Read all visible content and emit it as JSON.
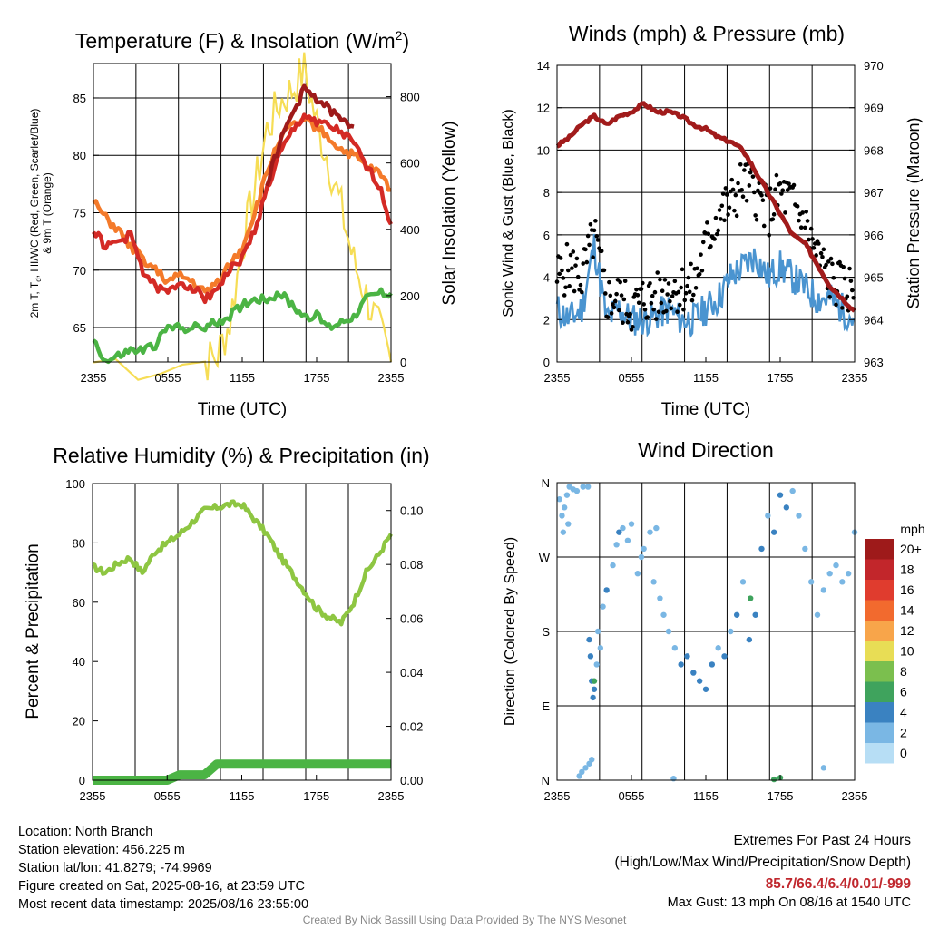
{
  "info": {
    "location": "Location: North Branch",
    "elevation": "Station elevation: 456.225 m",
    "latlon": "Station lat/lon: 41.8279; -74.9969",
    "created": "Figure created on Sat, 2025-08-16, at 23:59 UTC",
    "recent": "Most recent data timestamp: 2025/08/16 23:55:00"
  },
  "extremes": {
    "title": "Extremes For Past 24 Hours",
    "legend": "(High/Low/Max Wind/Precipitation/Snow Depth)",
    "values": "85.7/66.4/6.4/0.01/-999",
    "max_gust": "Max Gust: 13 mph On 08/16 at 1540 UTC"
  },
  "credit": "Created By Nick Bassill Using Data Provided By The NYS Mesonet",
  "colors": {
    "temp_red": "#d42a25",
    "hiwc_scarlet": "#9e1a1a",
    "temp9m_orange": "#f47a2a",
    "dewpoint_green": "#4bb444",
    "solar_yellow": "#f6dd55",
    "rh_green": "#8ec642",
    "precip_green": "#4bb444",
    "wind_blue": "#4a94d0",
    "gust_black": "#000000",
    "pressure_maroon": "#a11b1b"
  },
  "chart_data": [
    {
      "id": "temp",
      "type": "line",
      "title_main": "Temperature (F) & Insolation (W/m",
      "title_sup": "2",
      "title_end": ")",
      "xlabel": "Time (UTC)",
      "ylabel_line1": "2m T, T",
      "ylabel_sub": "d",
      "ylabel_line1_end": ", HI/WC (Red, Green, Scarlet/Blue)",
      "ylabel_line2": "& 9m T (Orange)",
      "y2label": "Solar Insolation (Yellow)",
      "xticks": [
        "2355",
        "0555",
        "1155",
        "1755",
        "2355"
      ],
      "ylim": [
        62,
        88
      ],
      "yticks": [
        "65",
        "70",
        "75",
        "80",
        "85"
      ],
      "y2lim": [
        0,
        900
      ],
      "y2ticks": [
        "0",
        "200",
        "400",
        "600",
        "800"
      ],
      "series": [
        {
          "key": "temp",
          "x": [
            0,
            1,
            2,
            3,
            4,
            5,
            6,
            7,
            8,
            9,
            10,
            11,
            12,
            13,
            14,
            15,
            16,
            17,
            18,
            19,
            20,
            21,
            22,
            23,
            24
          ],
          "values": [
            73.5,
            72.0,
            72.5,
            73.0,
            70.0,
            68.5,
            68.0,
            69.0,
            68.5,
            67.5,
            68.5,
            70.0,
            71.0,
            73.5,
            77.0,
            80.0,
            82.0,
            83.5,
            83.0,
            82.5,
            82.0,
            81.0,
            79.0,
            77.5,
            74.0
          ]
        },
        {
          "key": "temp9m",
          "x": [
            0,
            1,
            2,
            3,
            4,
            5,
            6,
            7,
            8,
            9,
            10,
            11,
            12,
            13,
            14,
            15,
            16,
            17,
            18,
            19,
            20,
            21,
            22,
            23,
            24
          ],
          "values": [
            76.0,
            74.5,
            73.5,
            72.0,
            71.0,
            70.0,
            69.0,
            69.5,
            69.0,
            68.0,
            69.0,
            70.5,
            72.0,
            75.0,
            78.5,
            81.5,
            82.5,
            83.0,
            82.5,
            81.5,
            80.5,
            80.0,
            79.0,
            78.5,
            77.0
          ]
        },
        {
          "key": "hiwc",
          "x": [
            14,
            15,
            16,
            17,
            18,
            19,
            20,
            21
          ],
          "values": [
            77.5,
            81.0,
            83.5,
            85.7,
            85.0,
            84.0,
            83.0,
            82.5
          ]
        },
        {
          "key": "dewpoint",
          "x": [
            0,
            1,
            2,
            3,
            4,
            5,
            6,
            7,
            8,
            9,
            10,
            11,
            12,
            13,
            14,
            15,
            16,
            17,
            18,
            19,
            20,
            21,
            22,
            23,
            24
          ],
          "values": [
            64.0,
            62.0,
            62.5,
            63.0,
            63.0,
            63.5,
            65.0,
            65.0,
            65.0,
            65.0,
            65.5,
            66.0,
            67.0,
            67.5,
            67.5,
            68.0,
            67.0,
            66.0,
            66.0,
            65.0,
            65.5,
            66.0,
            67.5,
            68.0,
            68.0
          ]
        },
        {
          "key": "solar",
          "x": [
            0,
            9,
            10,
            11,
            12,
            13,
            14,
            15,
            16,
            17,
            18,
            19,
            20,
            21,
            22,
            23,
            24
          ],
          "values": [
            0,
            0,
            20,
            120,
            350,
            520,
            700,
            780,
            820,
            880,
            720,
            600,
            460,
            300,
            200,
            100,
            0
          ]
        }
      ]
    },
    {
      "id": "winds",
      "type": "line",
      "title": "Winds (mph) & Pressure (mb)",
      "xlabel": "Time (UTC)",
      "ylabel": "Sonic Wind & Gust (Blue, Black)",
      "y2label": "Station Pressure (Maroon)",
      "xticks": [
        "2355",
        "0555",
        "1155",
        "1755",
        "2355"
      ],
      "ylim": [
        0,
        14
      ],
      "yticks": [
        "0",
        "2",
        "4",
        "6",
        "8",
        "10",
        "12",
        "14"
      ],
      "y2lim": [
        963,
        970
      ],
      "y2ticks": [
        "963",
        "964",
        "965",
        "966",
        "967",
        "968",
        "969",
        "970"
      ],
      "series": [
        {
          "key": "wind",
          "x": [
            0,
            1,
            2,
            3,
            4,
            5,
            6,
            7,
            8,
            9,
            10,
            11,
            12,
            13,
            14,
            15,
            16,
            17,
            18,
            19,
            20,
            21,
            22,
            23,
            24
          ],
          "values": [
            2.5,
            2.0,
            2.5,
            5.5,
            2.0,
            2.5,
            2.0,
            2.0,
            2.2,
            2.5,
            2.0,
            2.0,
            2.5,
            3.0,
            4.0,
            4.5,
            5.0,
            4.0,
            4.5,
            4.0,
            3.5,
            3.0,
            3.0,
            2.5,
            2.0
          ]
        },
        {
          "key": "gust",
          "x": [
            0,
            1,
            2,
            3,
            4,
            5,
            6,
            7,
            8,
            9,
            10,
            11,
            12,
            13,
            14,
            15,
            16,
            17,
            18,
            19,
            20,
            21,
            22,
            23,
            24
          ],
          "values": [
            4.0,
            4.5,
            4.0,
            6.0,
            3.0,
            3.0,
            2.5,
            3.0,
            3.0,
            3.5,
            3.5,
            3.5,
            5.5,
            7.0,
            7.5,
            8.5,
            8.0,
            7.0,
            8.0,
            7.5,
            6.5,
            5.0,
            4.0,
            3.5,
            3.5
          ]
        },
        {
          "key": "pressure",
          "x": [
            0,
            1,
            2,
            3,
            4,
            5,
            6,
            7,
            8,
            9,
            10,
            11,
            12,
            13,
            14,
            15,
            16,
            17,
            18,
            19,
            20,
            21,
            22,
            23,
            24
          ],
          "values": [
            968.1,
            968.3,
            968.6,
            968.8,
            968.6,
            968.8,
            968.9,
            969.1,
            968.9,
            968.9,
            968.8,
            968.6,
            968.5,
            968.3,
            968.2,
            968.0,
            967.5,
            967.0,
            966.5,
            966.0,
            965.8,
            965.3,
            964.8,
            964.5,
            964.2
          ]
        }
      ]
    },
    {
      "id": "rh",
      "type": "line",
      "title": "Relative Humidity (%) & Precipitation (in)",
      "ylabel": "Percent & Precipitation",
      "xticks": [
        "2355",
        "0555",
        "1155",
        "1755",
        "2355"
      ],
      "ylim": [
        0,
        100
      ],
      "yticks": [
        "0",
        "20",
        "40",
        "60",
        "80",
        "100"
      ],
      "y2lim": [
        0,
        0.11
      ],
      "y2ticks": [
        "0.00",
        "0.02",
        "0.04",
        "0.06",
        "0.08",
        "0.10"
      ],
      "series": [
        {
          "key": "rh",
          "x": [
            0,
            1,
            2,
            3,
            4,
            5,
            6,
            7,
            8,
            9,
            10,
            11,
            12,
            13,
            14,
            15,
            16,
            17,
            18,
            19,
            20,
            21,
            22,
            23,
            24
          ],
          "values": [
            72,
            70,
            73,
            75,
            70,
            77,
            80,
            83,
            87,
            91,
            92,
            93,
            93,
            88,
            83,
            76,
            70,
            64,
            58,
            55,
            53,
            60,
            70,
            76,
            83
          ]
        },
        {
          "key": "precip",
          "x": [
            0,
            6,
            7,
            9,
            10,
            24
          ],
          "values": [
            0,
            0,
            0.002,
            0.002,
            0.006,
            0.006
          ]
        }
      ]
    },
    {
      "id": "wdir",
      "type": "scatter",
      "title": "Wind Direction",
      "ylabel": "Direction (Colored By Speed)",
      "xticks": [
        "2355",
        "0555",
        "1155",
        "1755",
        "2355"
      ],
      "ylim": [
        0,
        360
      ],
      "yticks": [
        "N",
        "E",
        "S",
        "W",
        "N"
      ],
      "colorbar": {
        "unit": "mph",
        "labels": [
          "20+",
          "18",
          "16",
          "14",
          "12",
          "10",
          "8",
          "6",
          "4",
          "2",
          "0"
        ],
        "colors": [
          "#9e1a1a",
          "#c2262b",
          "#e03c2e",
          "#f26a2e",
          "#f8a54a",
          "#e8dd55",
          "#7bbf4e",
          "#3fa35d",
          "#3a82c1",
          "#7ab7e4",
          "#b7def5"
        ]
      },
      "points": [
        [
          0.2,
          340,
          2
        ],
        [
          0.4,
          320,
          2
        ],
        [
          0.6,
          330,
          2
        ],
        [
          0.8,
          345,
          1
        ],
        [
          1.0,
          355,
          1
        ],
        [
          1.3,
          352,
          1
        ],
        [
          1.6,
          350,
          2
        ],
        [
          2.1,
          355,
          1
        ],
        [
          2.5,
          355,
          1
        ],
        [
          0.5,
          300,
          2
        ],
        [
          0.9,
          310,
          2
        ],
        [
          2.6,
          170,
          3
        ],
        [
          2.7,
          150,
          4
        ],
        [
          2.8,
          120,
          3
        ],
        [
          2.9,
          100,
          4
        ],
        [
          3.0,
          110,
          3
        ],
        [
          3.2,
          140,
          2
        ],
        [
          3.5,
          160,
          2
        ],
        [
          3.3,
          180,
          2
        ],
        [
          3.7,
          210,
          2
        ],
        [
          4.0,
          230,
          3
        ],
        [
          4.5,
          260,
          2
        ],
        [
          4.8,
          285,
          2
        ],
        [
          5.0,
          300,
          3
        ],
        [
          5.3,
          305,
          2
        ],
        [
          5.7,
          290,
          2
        ],
        [
          6.0,
          310,
          2
        ],
        [
          6.5,
          250,
          2
        ],
        [
          6.8,
          270,
          2
        ],
        [
          7.0,
          280,
          2
        ],
        [
          7.5,
          300,
          2
        ],
        [
          8.0,
          305,
          2
        ],
        [
          7.8,
          240,
          2
        ],
        [
          8.3,
          220,
          2
        ],
        [
          8.6,
          200,
          1
        ],
        [
          9.0,
          180,
          2
        ],
        [
          9.5,
          160,
          2
        ],
        [
          10.0,
          140,
          3
        ],
        [
          10.5,
          150,
          3
        ],
        [
          11.0,
          130,
          3
        ],
        [
          11.5,
          120,
          4
        ],
        [
          12.0,
          110,
          4
        ],
        [
          12.5,
          140,
          3
        ],
        [
          13.0,
          160,
          2
        ],
        [
          13.5,
          150,
          3
        ],
        [
          14.0,
          180,
          2
        ],
        [
          14.5,
          200,
          3
        ],
        [
          15.0,
          240,
          2
        ],
        [
          15.5,
          170,
          3
        ],
        [
          16.0,
          200,
          4
        ],
        [
          16.5,
          280,
          3
        ],
        [
          17.0,
          320,
          2
        ],
        [
          17.5,
          300,
          3
        ],
        [
          18.0,
          345,
          3
        ],
        [
          18.5,
          330,
          3
        ],
        [
          19.0,
          350,
          2
        ],
        [
          19.5,
          320,
          2
        ],
        [
          20.0,
          280,
          2
        ],
        [
          20.5,
          240,
          2
        ],
        [
          21.0,
          200,
          2
        ],
        [
          21.5,
          230,
          2
        ],
        [
          22.0,
          250,
          2
        ],
        [
          22.5,
          260,
          2
        ],
        [
          23.0,
          240,
          2
        ],
        [
          23.5,
          250,
          2
        ],
        [
          24.0,
          300,
          2
        ],
        [
          2.0,
          10,
          2
        ],
        [
          2.3,
          15,
          2
        ],
        [
          2.6,
          20,
          2
        ],
        [
          2.8,
          25,
          2
        ],
        [
          1.8,
          5,
          2
        ],
        [
          9.4,
          2,
          2
        ],
        [
          17.5,
          1,
          6
        ],
        [
          18.0,
          3,
          6
        ],
        [
          21.5,
          15,
          1
        ],
        [
          3.0,
          120,
          6
        ],
        [
          15.6,
          220,
          6
        ]
      ]
    }
  ]
}
